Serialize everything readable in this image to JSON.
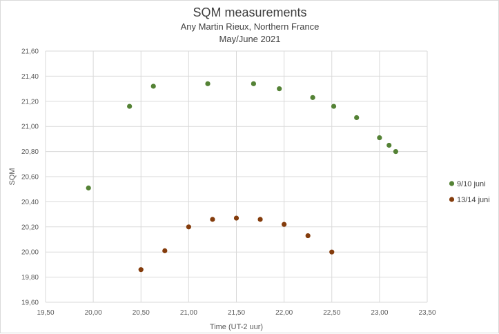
{
  "chart_data": {
    "type": "scatter",
    "title": "SQM measurements",
    "subtitle": [
      "Any Martin Rieux, Northern France",
      "May/June 2021"
    ],
    "xlabel": "Time (UT-2 uur)",
    "ylabel": "SQM",
    "xlim": [
      19.5,
      23.5
    ],
    "ylim": [
      19.6,
      21.6
    ],
    "x_ticks": [
      "19,50",
      "20,00",
      "20,50",
      "21,00",
      "21,50",
      "22,00",
      "22,50",
      "23,00",
      "23,50"
    ],
    "y_ticks": [
      "19,60",
      "19,80",
      "20,00",
      "20,20",
      "20,40",
      "20,60",
      "20,80",
      "21,00",
      "21,20",
      "21,40",
      "21,60"
    ],
    "grid": true,
    "legend_position": "right",
    "series": [
      {
        "name": "9/10 juni",
        "color": "#548235",
        "points": [
          [
            19.95,
            20.51
          ],
          [
            20.38,
            21.16
          ],
          [
            20.63,
            21.32
          ],
          [
            21.2,
            21.34
          ],
          [
            21.68,
            21.34
          ],
          [
            21.95,
            21.3
          ],
          [
            22.3,
            21.23
          ],
          [
            22.52,
            21.16
          ],
          [
            22.76,
            21.07
          ],
          [
            23.0,
            20.91
          ],
          [
            23.1,
            20.85
          ],
          [
            23.17,
            20.8
          ]
        ]
      },
      {
        "name": "13/14 juni",
        "color": "#843c0c",
        "points": [
          [
            20.5,
            19.86
          ],
          [
            20.75,
            20.01
          ],
          [
            21.0,
            20.2
          ],
          [
            21.25,
            20.26
          ],
          [
            21.5,
            20.27
          ],
          [
            21.75,
            20.26
          ],
          [
            22.0,
            20.22
          ],
          [
            22.25,
            20.13
          ],
          [
            22.5,
            20.0
          ]
        ]
      }
    ]
  }
}
